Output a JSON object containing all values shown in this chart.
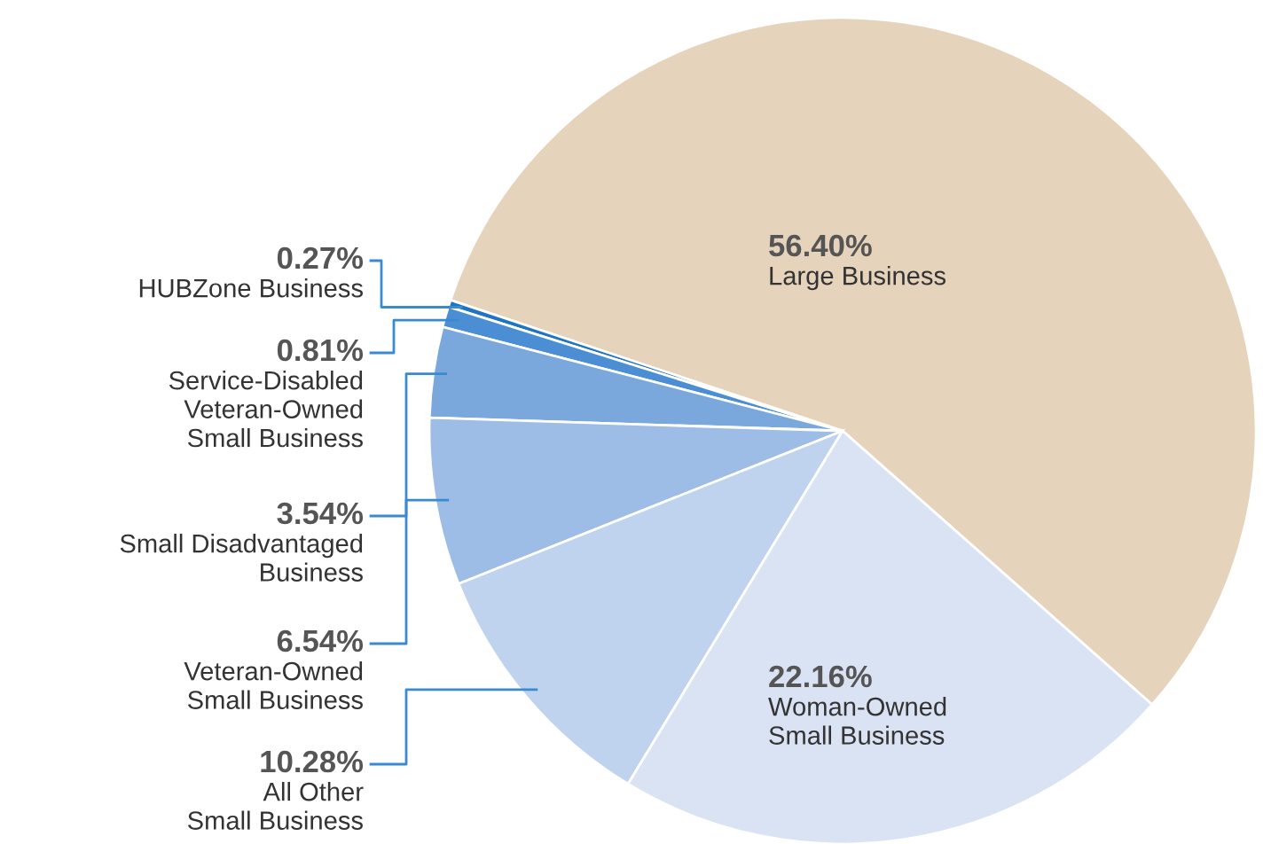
{
  "chart_data": {
    "type": "pie",
    "categories": [
      "Large Business",
      "HUBZone Business",
      "Service-Disabled\nVeteran-Owned\nSmall Business",
      "Small Disadvantaged\nBusiness",
      "Veteran-Owned\nSmall Business",
      "All Other\nSmall Business",
      "Woman-Owned\nSmall Business"
    ],
    "values": [
      56.4,
      0.27,
      0.81,
      3.54,
      6.54,
      10.28,
      22.16
    ],
    "value_labels": [
      "56.40%",
      "0.27%",
      "0.81%",
      "3.54%",
      "6.54%",
      "10.28%",
      "22.16%"
    ],
    "colors": [
      "#e6d3bb",
      "#1f74c4",
      "#4b8ed3",
      "#7aa8dd",
      "#9ebde6",
      "#bfd3ee",
      "#d9e3f3"
    ],
    "legend": false
  }
}
